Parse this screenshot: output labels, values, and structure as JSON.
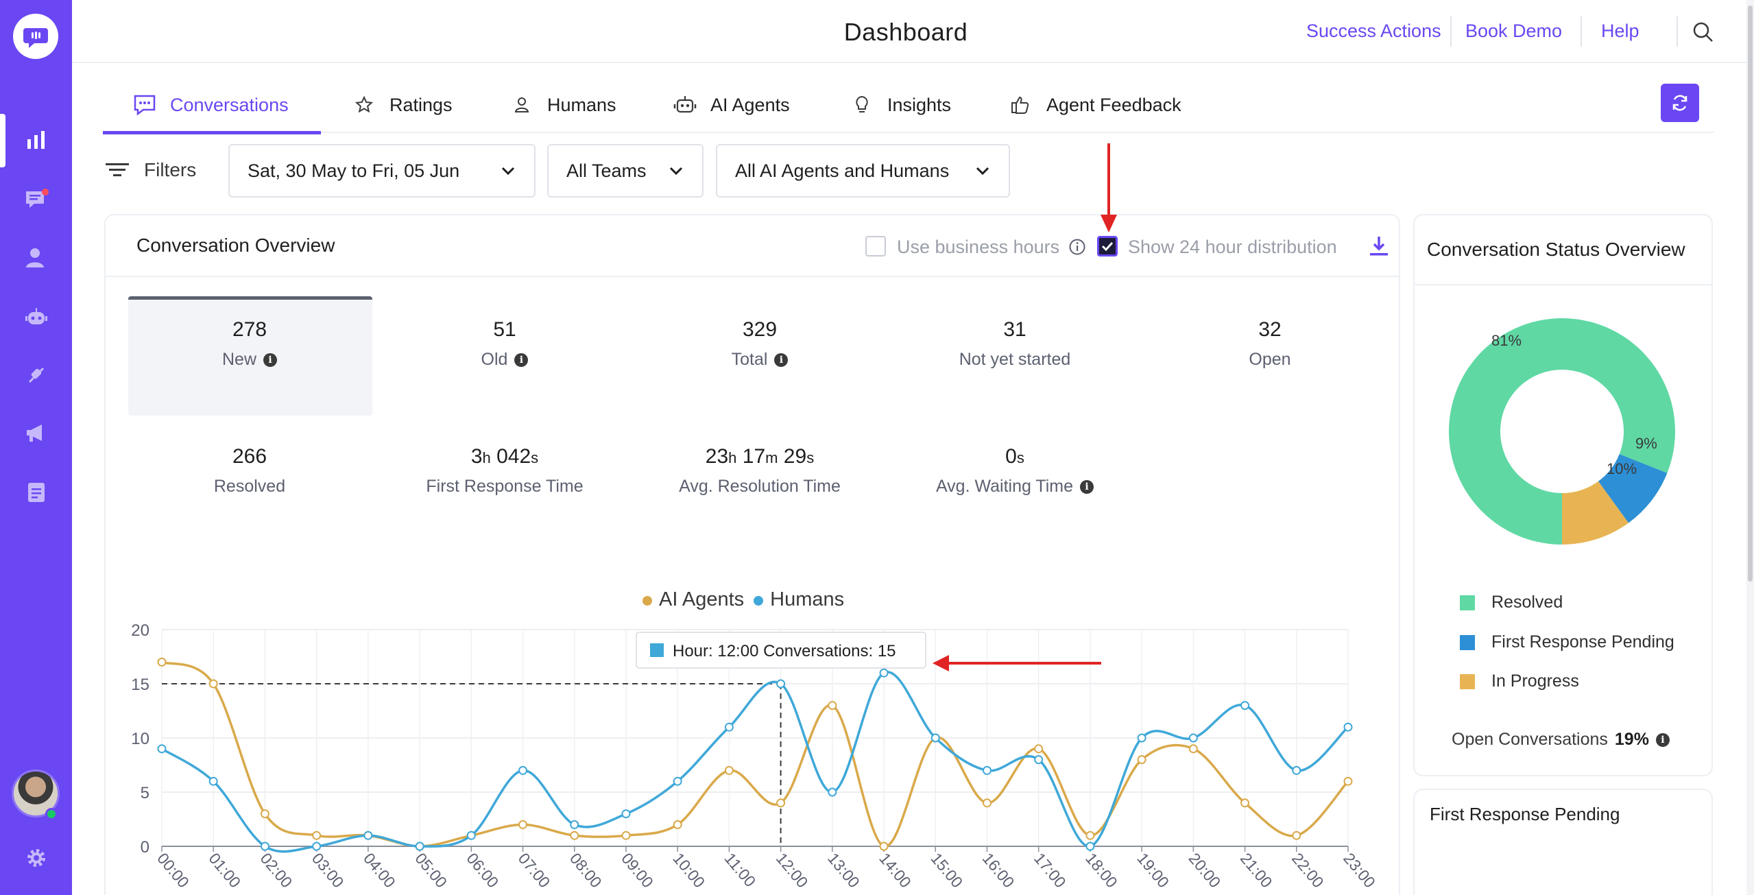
{
  "header": {
    "title": "Dashboard",
    "links": [
      "Success Actions",
      "Book Demo",
      "Help"
    ]
  },
  "tabs": [
    {
      "label": "Conversations",
      "icon": "chat-dots-icon",
      "active": true
    },
    {
      "label": "Ratings",
      "icon": "star-icon",
      "active": false
    },
    {
      "label": "Humans",
      "icon": "person-icon",
      "active": false
    },
    {
      "label": "AI Agents",
      "icon": "robot-icon",
      "active": false
    },
    {
      "label": "Insights",
      "icon": "lightbulb-icon",
      "active": false
    },
    {
      "label": "Agent Feedback",
      "icon": "thumbs-up-icon",
      "active": false
    }
  ],
  "filters": {
    "label": "Filters",
    "date_range": "Sat, 30 May to Fri, 05 Jun",
    "teams": "All Teams",
    "agents": "All AI Agents and Humans"
  },
  "overview": {
    "title": "Conversation Overview",
    "use_business_hours": {
      "label": "Use business hours",
      "checked": false
    },
    "show_24h": {
      "label": "Show 24 hour distribution",
      "checked": true
    },
    "stats": [
      {
        "value": "278",
        "label": "New",
        "info": true
      },
      {
        "value": "51",
        "label": "Old",
        "info": true
      },
      {
        "value": "329",
        "label": "Total",
        "info": true
      },
      {
        "value": "31",
        "label": "Not yet started",
        "info": false
      },
      {
        "value": "32",
        "label": "Open",
        "info": false
      },
      {
        "value": "266",
        "label": "Resolved",
        "info": false
      },
      {
        "value_parts": [
          [
            "3",
            "h"
          ],
          [
            " 042",
            "s"
          ]
        ],
        "label": "First Response Time",
        "info": false
      },
      {
        "value_parts": [
          [
            "23",
            "h"
          ],
          [
            " 17",
            "m"
          ],
          [
            " 29",
            "s"
          ]
        ],
        "label": "Avg. Resolution Time",
        "info": false
      },
      {
        "value_parts": [
          [
            "0",
            "s"
          ]
        ],
        "label": "Avg. Waiting Time",
        "info": true
      }
    ]
  },
  "chart_data": {
    "type": "line",
    "x": [
      "00:00",
      "01:00",
      "02:00",
      "03:00",
      "04:00",
      "05:00",
      "06:00",
      "07:00",
      "08:00",
      "09:00",
      "10:00",
      "11:00",
      "12:00",
      "13:00",
      "14:00",
      "15:00",
      "16:00",
      "17:00",
      "18:00",
      "19:00",
      "20:00",
      "21:00",
      "22:00",
      "23:00"
    ],
    "series": [
      {
        "name": "AI Agents",
        "color": "#d9a94a",
        "values": [
          17,
          15,
          3,
          1,
          1,
          0,
          1,
          2,
          1,
          1,
          2,
          7,
          4,
          13,
          0,
          10,
          4,
          9,
          1,
          8,
          9,
          4,
          1,
          6
        ]
      },
      {
        "name": "Humans",
        "color": "#3fa8d8",
        "values": [
          9,
          6,
          0,
          0,
          1,
          0,
          1,
          7,
          2,
          3,
          6,
          11,
          15,
          5,
          16,
          10,
          7,
          8,
          0,
          10,
          10,
          13,
          7,
          11
        ]
      }
    ],
    "yticks": [
      0,
      5,
      10,
      15,
      20
    ],
    "ylim": [
      0,
      20
    ],
    "grid": true,
    "legend": "top-center",
    "tooltip": {
      "text": "Hour: 12:00 Conversations: 15",
      "x": "12:00",
      "y": 15
    }
  },
  "status_overview": {
    "title": "Conversation Status Overview",
    "chart_data": {
      "type": "pie",
      "labels": [
        "Resolved",
        "First Response Pending",
        "In Progress"
      ],
      "values": [
        81,
        9,
        10
      ],
      "slice_labels": [
        "81%",
        "9%",
        "10%"
      ],
      "colors": [
        "#5fd8a4",
        "#2d8fd5",
        "#e8b453"
      ]
    },
    "legend": [
      "Resolved",
      "First Response Pending",
      "In Progress"
    ],
    "open_label": "Open Conversations",
    "open_value": "19%"
  },
  "frp_card": {
    "title": "First Response Pending"
  }
}
